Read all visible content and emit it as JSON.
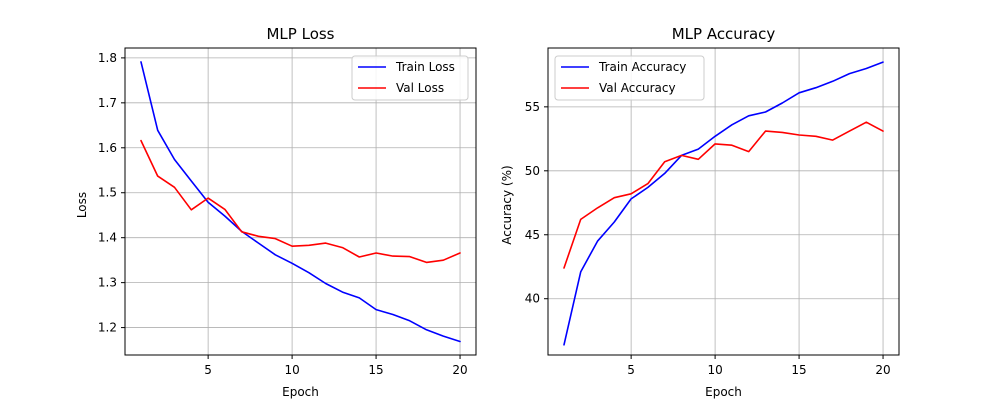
{
  "chart_data": [
    {
      "type": "line",
      "title": "MLP Loss",
      "xlabel": "Epoch",
      "ylabel": "Loss",
      "xlim": [
        0.05,
        20.95
      ],
      "ylim": [
        1.139,
        1.822
      ],
      "xticks": [
        5,
        10,
        15,
        20
      ],
      "yticks": [
        1.2,
        1.3,
        1.4,
        1.5,
        1.6,
        1.7,
        1.8
      ],
      "ytick_labels": [
        "1.2",
        "1.3",
        "1.4",
        "1.5",
        "1.6",
        "1.7",
        "1.8"
      ],
      "grid": true,
      "legend_position": "top-right",
      "x": [
        1,
        2,
        3,
        4,
        5,
        6,
        7,
        8,
        9,
        10,
        11,
        12,
        13,
        14,
        15,
        16,
        17,
        18,
        19,
        20
      ],
      "series": [
        {
          "name": "Train Loss",
          "color": "#0000ff",
          "values": [
            1.791,
            1.639,
            1.574,
            1.526,
            1.479,
            1.448,
            1.414,
            1.388,
            1.362,
            1.343,
            1.322,
            1.298,
            1.279,
            1.266,
            1.24,
            1.229,
            1.215,
            1.195,
            1.181,
            1.169
          ]
        },
        {
          "name": "Val Loss",
          "color": "#ff0000",
          "values": [
            1.616,
            1.537,
            1.512,
            1.462,
            1.488,
            1.463,
            1.413,
            1.403,
            1.398,
            1.381,
            1.383,
            1.388,
            1.378,
            1.357,
            1.366,
            1.359,
            1.358,
            1.345,
            1.35,
            1.366
          ]
        }
      ]
    },
    {
      "type": "line",
      "title": "MLP Accuracy",
      "xlabel": "Epoch",
      "ylabel": "Accuracy (%)",
      "xlim": [
        0.05,
        20.95
      ],
      "ylim": [
        35.6,
        59.6
      ],
      "xticks": [
        5,
        10,
        15,
        20
      ],
      "yticks": [
        40,
        45,
        50,
        55
      ],
      "ytick_labels": [
        "40",
        "45",
        "50",
        "55"
      ],
      "grid": true,
      "legend_position": "top-left",
      "x": [
        1,
        2,
        3,
        4,
        5,
        6,
        7,
        8,
        9,
        10,
        11,
        12,
        13,
        14,
        15,
        16,
        17,
        18,
        19,
        20
      ],
      "series": [
        {
          "name": "Train Accuracy",
          "color": "#0000ff",
          "values": [
            36.4,
            42.1,
            44.5,
            46.0,
            47.8,
            48.7,
            49.8,
            51.2,
            51.7,
            52.7,
            53.6,
            54.3,
            54.6,
            55.3,
            56.1,
            56.5,
            57.0,
            57.6,
            58.0,
            58.5
          ]
        },
        {
          "name": "Val Accuracy",
          "color": "#ff0000",
          "values": [
            42.4,
            46.2,
            47.1,
            47.9,
            48.2,
            49.0,
            50.7,
            51.2,
            50.9,
            52.1,
            52.0,
            51.5,
            53.1,
            53.0,
            52.8,
            52.7,
            52.4,
            53.1,
            53.8,
            53.1
          ]
        }
      ]
    }
  ]
}
